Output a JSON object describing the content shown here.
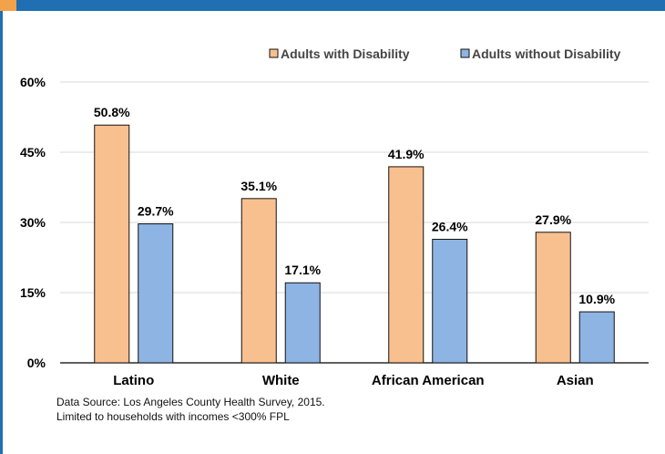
{
  "colors": {
    "frame_blue": "#1f6fb2",
    "frame_orange": "#f4a24a",
    "series_with": "#f9c08f",
    "series_without": "#8eb4e3",
    "bar_stroke": "#111111",
    "grid": "#d9d9d9"
  },
  "chart_data": {
    "type": "bar",
    "categories": [
      "Latino",
      "White",
      "African American",
      "Asian"
    ],
    "series": [
      {
        "name": "Adults with Disability",
        "values": [
          50.8,
          35.1,
          41.9,
          27.9
        ]
      },
      {
        "name": "Adults without Disability",
        "values": [
          29.7,
          17.1,
          26.4,
          10.9
        ]
      }
    ],
    "data_labels": [
      [
        "50.8%",
        "35.1%",
        "41.9%",
        "27.9%"
      ],
      [
        "29.7%",
        "17.1%",
        "26.4%",
        "10.9%"
      ]
    ],
    "ylim": [
      0,
      60
    ],
    "yticks": [
      0,
      15,
      30,
      45,
      60
    ],
    "ytick_labels": [
      "0%",
      "15%",
      "30%",
      "45%",
      "60%"
    ],
    "grid": true,
    "legend_position": "top-right",
    "title": "",
    "xlabel": "",
    "ylabel": ""
  },
  "footnote": {
    "line1": "Data Source: Los Angeles County Health Survey, 2015.",
    "line2": "Limited to households with incomes <300% FPL"
  }
}
